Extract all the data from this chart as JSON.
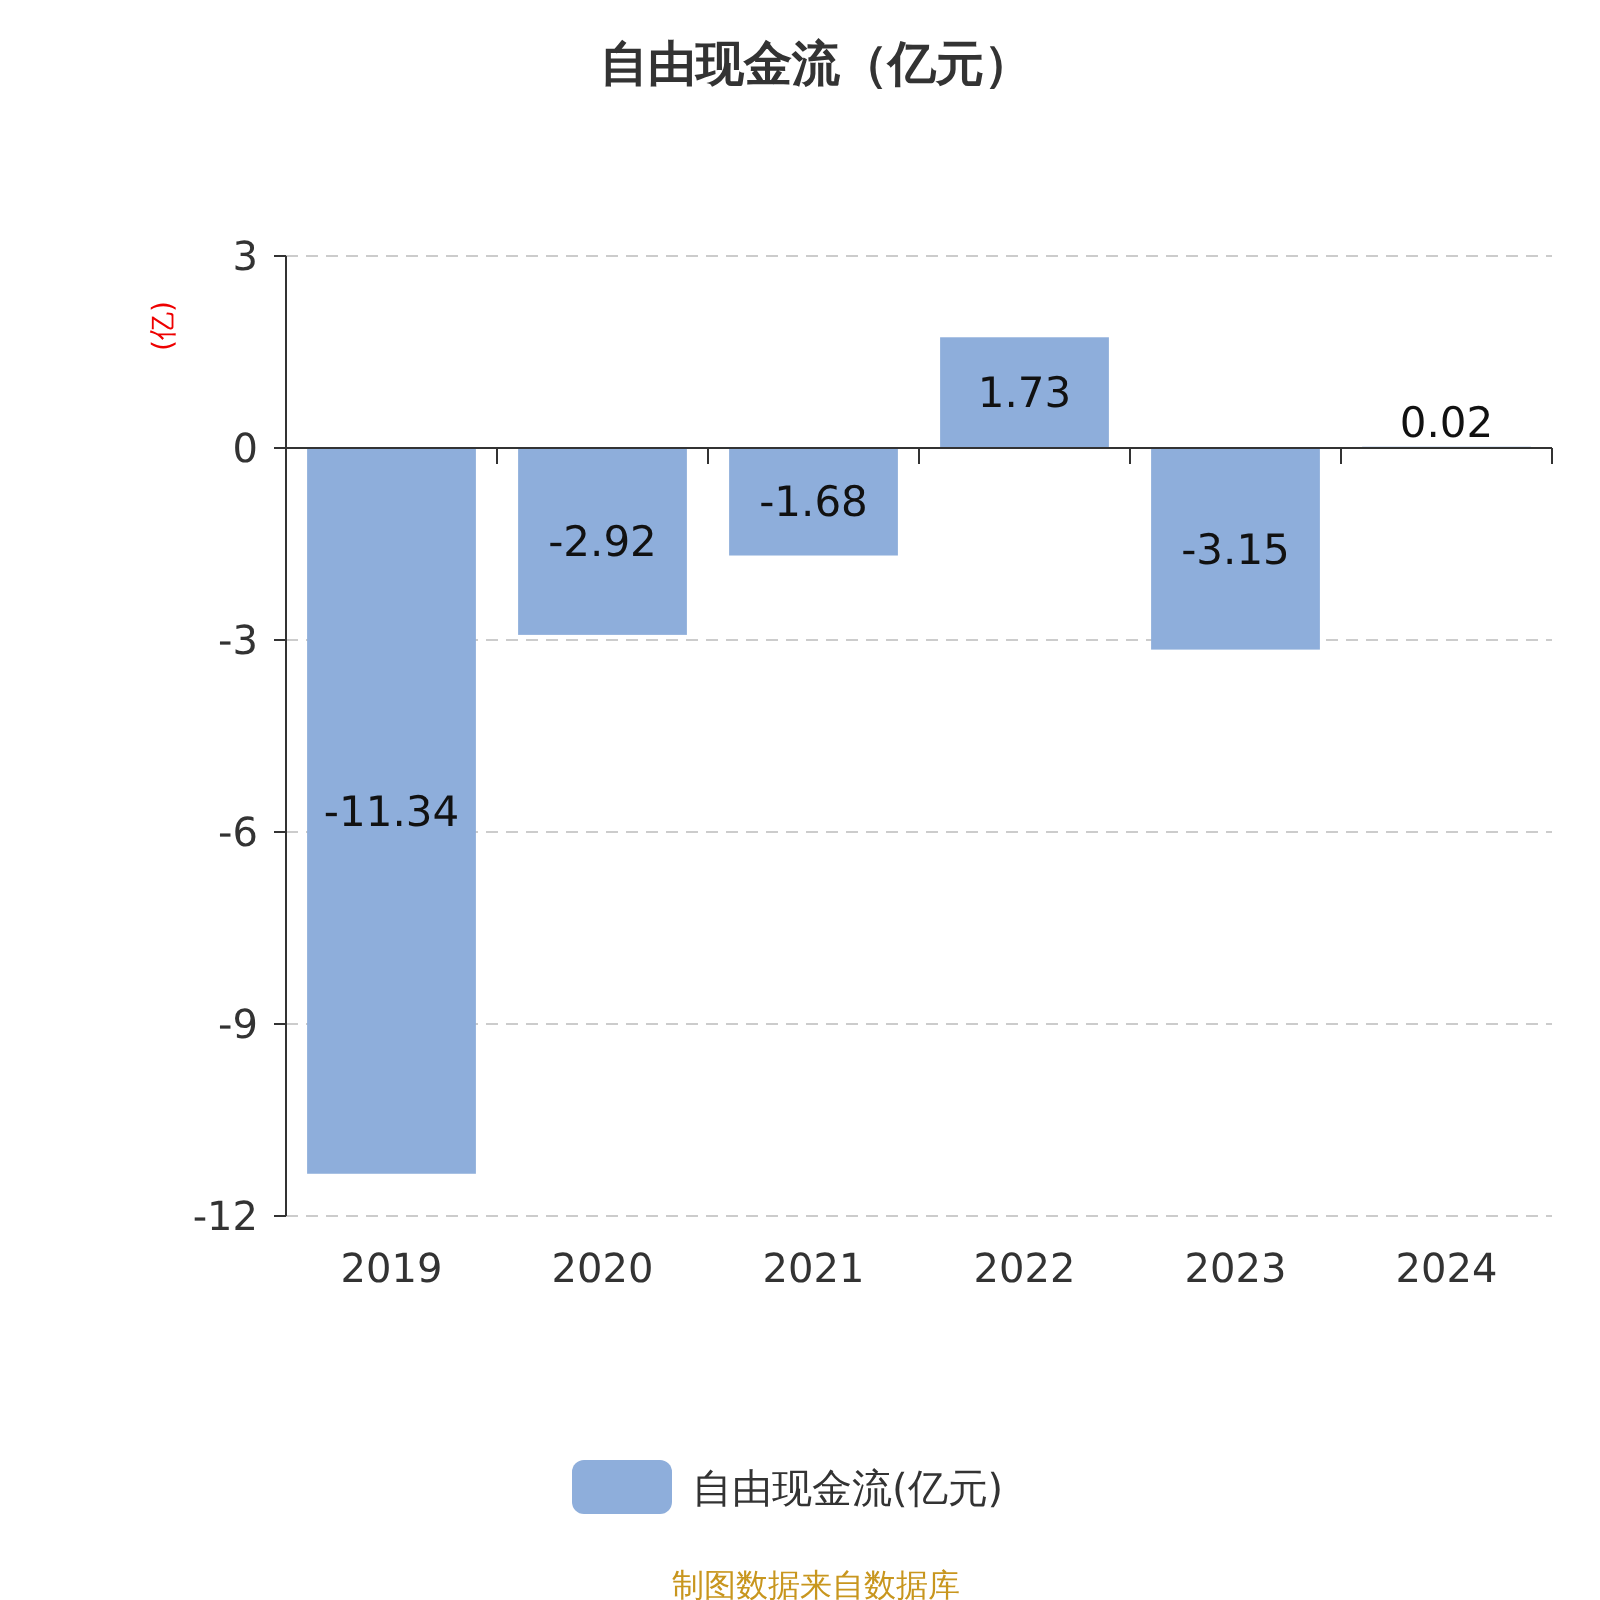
{
  "chart_data": {
    "type": "bar",
    "title": "自由现金流（亿元）",
    "ylabel": "(亿)",
    "categories": [
      "2019",
      "2020",
      "2021",
      "2022",
      "2023",
      "2024"
    ],
    "series": [
      {
        "name": "自由现金流(亿元)",
        "color": "#8eaedb",
        "values": [
          -11.34,
          -2.92,
          -1.68,
          1.73,
          -3.15,
          0.02
        ]
      }
    ],
    "ylim": [
      -12,
      3
    ],
    "yticks": [
      -12,
      -9,
      -6,
      -3,
      0,
      3
    ],
    "grid": "y",
    "legend": "bottom",
    "data_labels": true,
    "annotations": [
      "制图数据来自数据库"
    ]
  }
}
